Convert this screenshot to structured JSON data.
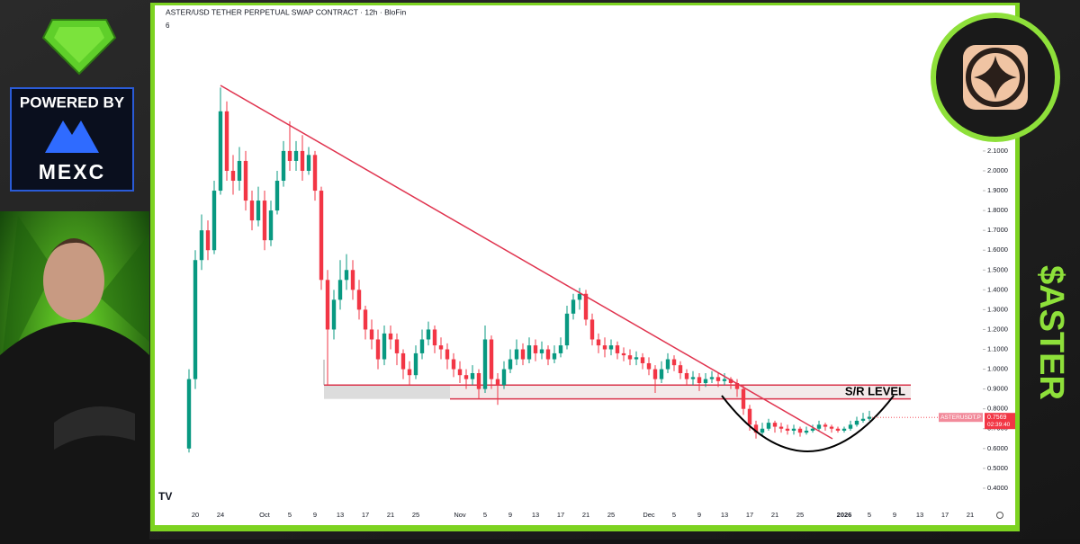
{
  "chart_data": {
    "type": "candlestick",
    "title": "ASTER/USD TETHER PERPETUAL SWAP CONTRACT · 12h · BloFin",
    "indicator_count": "6",
    "annotation": "S/R LEVEL",
    "sr_zone": [
      0.85,
      0.92
    ],
    "price_tag": {
      "symbol": "ASTERUSDT.P",
      "price": 0.7569,
      "countdown": "02:39:40"
    },
    "categories": [
      null,
      "20",
      null,
      null,
      null,
      "24",
      null,
      null,
      null,
      null,
      null,
      null,
      "Oct",
      null,
      null,
      null,
      "5",
      null,
      null,
      null,
      "9",
      null,
      null,
      null,
      "13",
      null,
      null,
      null,
      "17",
      null,
      null,
      null,
      "21",
      null,
      null,
      null,
      "25",
      null,
      null,
      null,
      null,
      null,
      null,
      "Nov",
      null,
      null,
      null,
      "5",
      null,
      null,
      null,
      "9",
      null,
      null,
      null,
      "13",
      null,
      null,
      null,
      "17",
      null,
      null,
      null,
      "21",
      null,
      null,
      null,
      "25",
      null,
      null,
      null,
      null,
      null,
      "Dec",
      null,
      null,
      null,
      "5",
      null,
      null,
      null,
      "9",
      null,
      null,
      null,
      "13",
      null,
      null,
      null,
      "17",
      null,
      null,
      null,
      "21",
      null,
      null,
      null,
      "25",
      null,
      null,
      null,
      null,
      null,
      null,
      "2026",
      null,
      null,
      null,
      "5",
      null,
      null,
      null,
      "9",
      null,
      null,
      null,
      "13",
      null,
      null,
      null,
      "17",
      null,
      null,
      null,
      "21",
      null
    ],
    "open": [
      0.6,
      0.95,
      1.55,
      1.7,
      1.6,
      1.9,
      2.3,
      2.0,
      1.95,
      2.05,
      1.85,
      1.75,
      1.85,
      1.65,
      1.8,
      1.95,
      2.1,
      2.05,
      2.1,
      2.0,
      2.08,
      1.9,
      1.45,
      1.2,
      1.35,
      1.45,
      1.5,
      1.4,
      1.3,
      1.2,
      1.15,
      1.05,
      1.18,
      1.15,
      1.08,
      1.0,
      0.97,
      1.08,
      1.15,
      1.2,
      1.12,
      1.1,
      1.05,
      1.0,
      0.97,
      0.95,
      0.98,
      0.9,
      1.15,
      0.95,
      0.92,
      1.0,
      1.05,
      1.1,
      1.05,
      1.12,
      1.08,
      1.1,
      1.05,
      1.08,
      1.12,
      1.28,
      1.35,
      1.38,
      1.25,
      1.15,
      1.12,
      1.1,
      1.12,
      1.08,
      1.07,
      1.05,
      1.06,
      1.03,
      1.0,
      0.95,
      1.0,
      1.05,
      1.02,
      0.98,
      0.95,
      0.96,
      0.93,
      0.95,
      0.96,
      0.94,
      0.95,
      0.93,
      0.9,
      0.8,
      0.72,
      0.68,
      0.7,
      0.73,
      0.71,
      0.7,
      0.69,
      0.7,
      0.68,
      0.69,
      0.7,
      0.72,
      0.71,
      0.7,
      0.69,
      0.7,
      0.72,
      0.74,
      0.75,
      null,
      null,
      null,
      null,
      null,
      null,
      null,
      null,
      null,
      null,
      null,
      null,
      null,
      null,
      null,
      null,
      null
    ],
    "high": [
      1.0,
      1.6,
      1.78,
      1.75,
      1.95,
      2.42,
      2.35,
      2.08,
      2.12,
      2.1,
      1.9,
      1.92,
      1.9,
      1.85,
      2.0,
      2.15,
      2.25,
      2.15,
      2.18,
      2.12,
      2.1,
      1.92,
      1.5,
      1.4,
      1.55,
      1.58,
      1.55,
      1.45,
      1.32,
      1.25,
      1.2,
      1.22,
      1.22,
      1.18,
      1.1,
      1.04,
      1.12,
      1.2,
      1.24,
      1.22,
      1.16,
      1.13,
      1.08,
      1.04,
      1.0,
      1.02,
      1.0,
      1.22,
      1.17,
      0.98,
      1.04,
      1.1,
      1.15,
      1.13,
      1.16,
      1.15,
      1.14,
      1.12,
      1.12,
      1.16,
      1.32,
      1.38,
      1.41,
      1.4,
      1.28,
      1.18,
      1.16,
      1.15,
      1.14,
      1.11,
      1.1,
      1.09,
      1.08,
      1.06,
      1.02,
      1.04,
      1.08,
      1.07,
      1.04,
      1.0,
      0.99,
      0.98,
      0.98,
      0.99,
      0.98,
      0.98,
      0.96,
      0.95,
      0.92,
      0.82,
      0.74,
      0.73,
      0.75,
      0.74,
      0.73,
      0.72,
      0.72,
      0.71,
      0.71,
      0.72,
      0.74,
      0.73,
      0.72,
      0.71,
      0.71,
      0.74,
      0.76,
      0.78,
      0.79,
      null,
      null,
      null,
      null,
      null,
      null,
      null,
      null,
      null,
      null,
      null,
      null,
      null,
      null,
      null,
      null,
      null
    ],
    "low": [
      0.58,
      0.9,
      1.5,
      1.55,
      1.58,
      1.88,
      1.95,
      1.88,
      1.9,
      1.8,
      1.7,
      1.72,
      1.6,
      1.62,
      1.78,
      1.92,
      2.0,
      2.0,
      1.95,
      1.98,
      1.85,
      1.4,
      0.92,
      1.15,
      1.3,
      1.4,
      1.35,
      1.25,
      1.15,
      1.1,
      1.0,
      1.02,
      1.1,
      1.02,
      0.95,
      0.92,
      0.95,
      1.05,
      1.12,
      1.08,
      1.05,
      1.0,
      0.96,
      0.93,
      0.9,
      0.92,
      0.85,
      0.88,
      0.9,
      0.82,
      0.9,
      0.98,
      1.02,
      1.02,
      1.03,
      1.04,
      1.05,
      1.02,
      1.03,
      1.06,
      1.1,
      1.25,
      1.3,
      1.22,
      1.12,
      1.08,
      1.06,
      1.07,
      1.05,
      1.04,
      1.02,
      1.02,
      1.0,
      0.97,
      0.88,
      0.93,
      0.98,
      0.99,
      0.95,
      0.92,
      0.92,
      0.89,
      0.91,
      0.93,
      0.91,
      0.92,
      0.9,
      0.86,
      0.77,
      0.69,
      0.65,
      0.66,
      0.69,
      0.68,
      0.68,
      0.67,
      0.67,
      0.66,
      0.67,
      0.68,
      0.69,
      0.69,
      0.68,
      0.68,
      0.68,
      0.69,
      0.71,
      0.73,
      0.74,
      null,
      null,
      null,
      null,
      null,
      null,
      null,
      null,
      null,
      null,
      null,
      null,
      null,
      null,
      null,
      null,
      null
    ],
    "close": [
      0.95,
      1.55,
      1.7,
      1.6,
      1.9,
      2.3,
      2.0,
      1.95,
      2.05,
      1.85,
      1.75,
      1.85,
      1.65,
      1.8,
      1.95,
      2.1,
      2.05,
      2.1,
      2.0,
      2.08,
      1.9,
      1.45,
      1.2,
      1.35,
      1.45,
      1.5,
      1.4,
      1.3,
      1.2,
      1.15,
      1.05,
      1.18,
      1.15,
      1.08,
      1.0,
      0.97,
      1.08,
      1.15,
      1.2,
      1.12,
      1.1,
      1.05,
      1.0,
      0.97,
      0.95,
      0.98,
      0.9,
      1.15,
      0.95,
      0.92,
      1.0,
      1.05,
      1.1,
      1.05,
      1.12,
      1.08,
      1.1,
      1.05,
      1.08,
      1.12,
      1.28,
      1.35,
      1.38,
      1.25,
      1.15,
      1.12,
      1.1,
      1.12,
      1.08,
      1.07,
      1.05,
      1.06,
      1.03,
      1.0,
      0.95,
      1.0,
      1.05,
      1.02,
      0.98,
      0.95,
      0.96,
      0.93,
      0.95,
      0.96,
      0.94,
      0.95,
      0.93,
      0.9,
      0.8,
      0.72,
      0.68,
      0.7,
      0.73,
      0.71,
      0.7,
      0.69,
      0.7,
      0.68,
      0.69,
      0.7,
      0.72,
      0.71,
      0.7,
      0.69,
      0.7,
      0.72,
      0.74,
      0.75,
      0.76,
      null,
      null,
      null,
      null,
      null,
      null,
      null,
      null,
      null,
      null,
      null,
      null,
      null,
      null,
      null,
      null,
      null
    ],
    "up_color": "#089981",
    "down_color": "#f23645",
    "ylim": [
      0.3,
      2.8
    ],
    "yticks": [
      {
        "value": 0.4,
        "label": "0.4000"
      },
      {
        "value": 0.5,
        "label": "0.5000"
      },
      {
        "value": 0.6,
        "label": "0.6000"
      },
      {
        "value": 0.7,
        "label": "0.7000"
      },
      {
        "value": 0.8,
        "label": "0.8000"
      },
      {
        "value": 0.9,
        "label": "0.9000"
      },
      {
        "value": 1.0,
        "label": "1.0000"
      },
      {
        "value": 1.1,
        "label": "1.1000"
      },
      {
        "value": 1.2,
        "label": "1.2000"
      },
      {
        "value": 1.3,
        "label": "1.3000"
      },
      {
        "value": 1.4,
        "label": "1.4000"
      },
      {
        "value": 1.5,
        "label": "1.5000"
      },
      {
        "value": 1.6,
        "label": "1.6000"
      },
      {
        "value": 1.7,
        "label": "1.7000"
      },
      {
        "value": 1.8,
        "label": "1.8000"
      },
      {
        "value": 1.9,
        "label": "1.9000"
      },
      {
        "value": 2.0,
        "label": "2.0000"
      },
      {
        "value": 2.1,
        "label": "2.1000"
      }
    ],
    "grid": false
  },
  "branding": {
    "powered_by": "POWERED BY",
    "exchange": "MEXC",
    "ticker": "$ASTER"
  }
}
